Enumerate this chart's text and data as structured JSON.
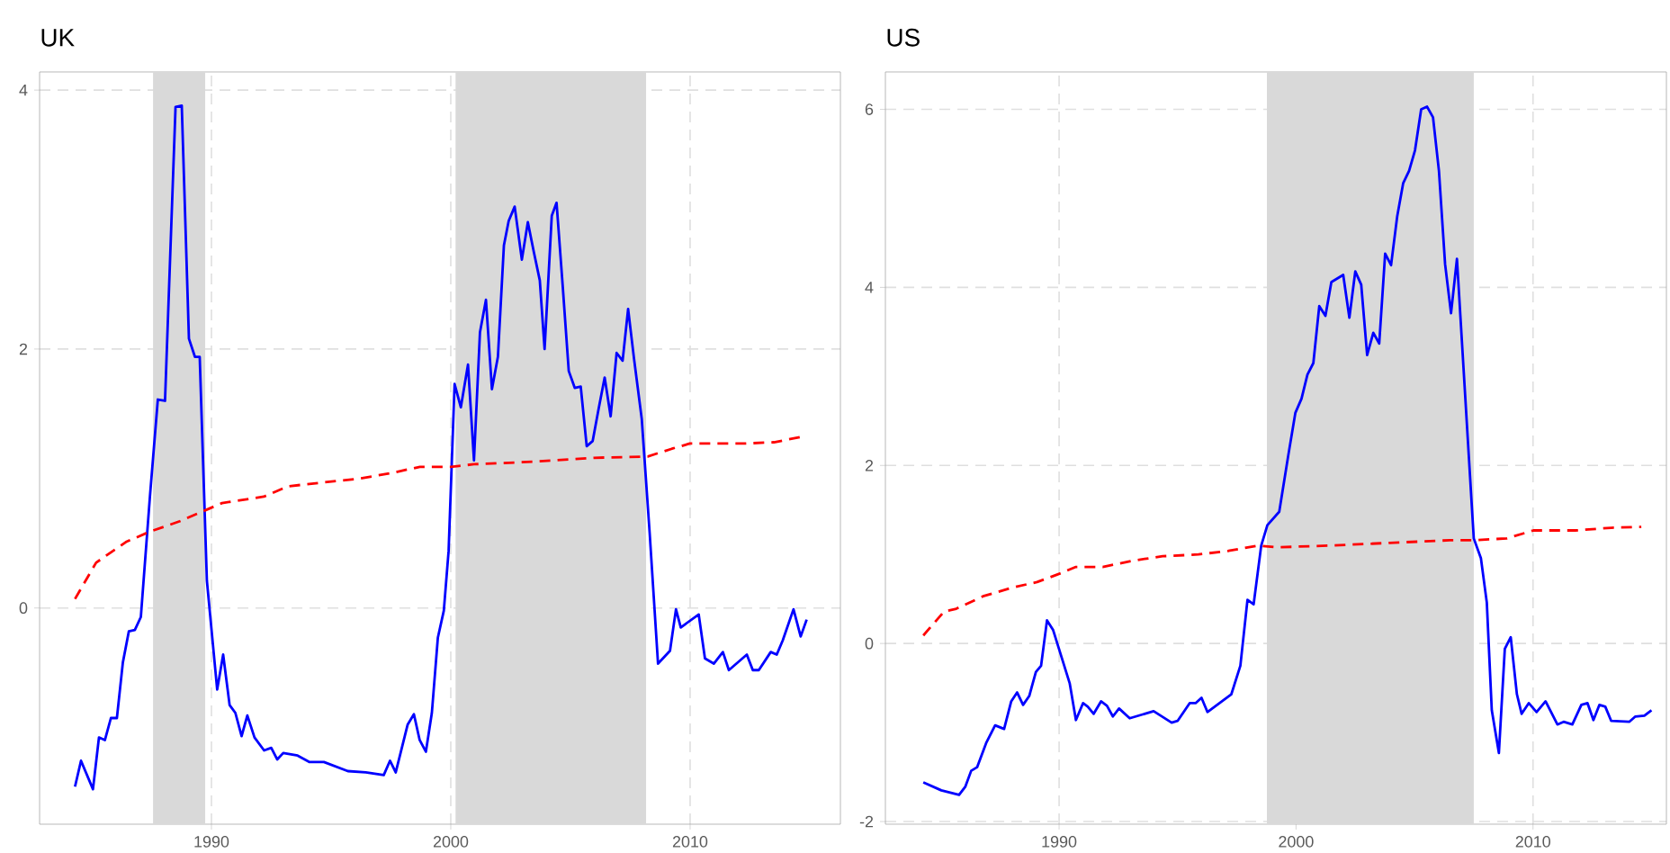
{
  "chart_data": [
    {
      "type": "line",
      "title": "UK",
      "xlim": [
        1982.82,
        2016.28
      ],
      "ylim": [
        -1.67,
        4.14
      ],
      "xticks": [
        1990,
        2000,
        2010
      ],
      "yticks": [
        0,
        2,
        4
      ],
      "grid": true,
      "bands": [
        {
          "axis": "x",
          "from": 1987.56,
          "to": 1989.74,
          "label": null,
          "color": "#d9d9d9"
        },
        {
          "axis": "x",
          "from": 2000.2,
          "to": 2008.16,
          "label": null,
          "color": "#d9d9d9"
        }
      ],
      "series": [
        {
          "color": "#0000ff",
          "line_style": "solid",
          "x": [
            1984.3,
            1984.55,
            1985.05,
            1985.3,
            1985.55,
            1985.8,
            1986.05,
            1986.3,
            1986.55,
            1986.8,
            1987.05,
            1987.43,
            1987.76,
            1988.06,
            1988.5,
            1988.76,
            1989.06,
            1989.31,
            1989.51,
            1989.81,
            1990.24,
            1990.49,
            1990.76,
            1991.0,
            1991.26,
            1991.5,
            1991.8,
            1992.2,
            1992.5,
            1992.75,
            1993.0,
            1993.6,
            1994.1,
            1994.7,
            1995.7,
            1996.45,
            1997.2,
            1997.46,
            1997.7,
            1998.2,
            1998.46,
            1998.7,
            1998.96,
            1999.21,
            1999.46,
            1999.71,
            1999.91,
            2000.16,
            2000.42,
            2000.72,
            2000.97,
            2001.22,
            2001.47,
            2001.72,
            2001.97,
            2002.22,
            2002.42,
            2002.67,
            2002.97,
            2003.22,
            2003.47,
            2003.72,
            2003.92,
            2004.22,
            2004.42,
            2004.68,
            2004.93,
            2005.18,
            2005.43,
            2005.68,
            2005.93,
            2006.18,
            2006.43,
            2006.68,
            2006.93,
            2007.18,
            2007.41,
            2007.66,
            2007.98,
            2008.31,
            2008.66,
            2009.16,
            2009.41,
            2009.61,
            2010.36,
            2010.62,
            2010.99,
            2011.37,
            2011.62,
            2012.37,
            2012.62,
            2012.87,
            2013.37,
            2013.62,
            2013.87,
            2014.32,
            2014.62,
            2014.87
          ],
          "values": [
            -1.38,
            -1.18,
            -1.4,
            -1.0,
            -1.02,
            -0.85,
            -0.85,
            -0.42,
            -0.18,
            -0.17,
            -0.07,
            0.86,
            1.61,
            1.6,
            3.87,
            3.88,
            2.08,
            1.94,
            1.94,
            0.21,
            -0.63,
            -0.36,
            -0.75,
            -0.81,
            -0.99,
            -0.83,
            -1.0,
            -1.1,
            -1.08,
            -1.17,
            -1.12,
            -1.14,
            -1.19,
            -1.19,
            -1.26,
            -1.27,
            -1.29,
            -1.18,
            -1.27,
            -0.9,
            -0.82,
            -1.02,
            -1.11,
            -0.81,
            -0.23,
            -0.02,
            0.44,
            1.73,
            1.55,
            1.88,
            1.14,
            2.13,
            2.38,
            1.69,
            1.94,
            2.8,
            2.99,
            3.1,
            2.69,
            2.98,
            2.75,
            2.53,
            2.0,
            3.03,
            3.13,
            2.48,
            1.83,
            1.7,
            1.71,
            1.25,
            1.29,
            1.54,
            1.78,
            1.48,
            1.97,
            1.91,
            2.31,
            1.92,
            1.46,
            0.58,
            -0.43,
            -0.33,
            -0.01,
            -0.15,
            -0.05,
            -0.39,
            -0.43,
            -0.34,
            -0.48,
            -0.36,
            -0.48,
            -0.48,
            -0.34,
            -0.36,
            -0.25,
            -0.01,
            -0.22,
            -0.09
          ]
        },
        {
          "color": "#ff0000",
          "line_style": "dashed",
          "x": [
            1984.3,
            1985.18,
            1986.43,
            1987.43,
            1988.68,
            1989.81,
            1990.44,
            1992.19,
            1993.2,
            1994.7,
            1996.2,
            1997.46,
            1998.71,
            2000.0,
            2000.97,
            2003.47,
            2005.98,
            2008.23,
            2009.24,
            2009.99,
            2012.24,
            2013.5,
            2014.62
          ],
          "values": [
            0.07,
            0.35,
            0.51,
            0.59,
            0.67,
            0.76,
            0.81,
            0.86,
            0.94,
            0.97,
            1.0,
            1.04,
            1.09,
            1.09,
            1.11,
            1.13,
            1.16,
            1.17,
            1.23,
            1.27,
            1.27,
            1.28,
            1.32
          ]
        }
      ]
    },
    {
      "type": "line",
      "title": "US",
      "xlim": [
        1982.67,
        2015.63
      ],
      "ylim": [
        -2.03,
        6.42
      ],
      "xticks": [
        1990,
        2000,
        2010
      ],
      "yticks": [
        -2,
        0,
        2,
        4,
        6
      ],
      "grid": true,
      "bands": [
        {
          "axis": "x",
          "from": 1998.77,
          "to": 2007.5,
          "label": null,
          "color": "#d9d9d9"
        }
      ],
      "series": [
        {
          "color": "#0000ff",
          "line_style": "solid",
          "x": [
            1984.27,
            1985.03,
            1985.78,
            1986.04,
            1986.29,
            1986.54,
            1986.92,
            1987.3,
            1987.68,
            1987.98,
            1988.23,
            1988.48,
            1988.74,
            1989.02,
            1989.24,
            1989.49,
            1989.75,
            1990.45,
            1990.71,
            1991.01,
            1991.21,
            1991.46,
            1991.77,
            1992.02,
            1992.27,
            1992.53,
            1992.98,
            1993.99,
            1994.75,
            1995.0,
            1995.51,
            1995.76,
            1996.01,
            1996.26,
            1997.27,
            1997.65,
            1997.95,
            1998.21,
            1998.53,
            1998.79,
            1999.29,
            1999.67,
            1999.97,
            2000.23,
            2000.48,
            2000.73,
            2000.98,
            2001.24,
            2001.49,
            2001.99,
            2002.25,
            2002.5,
            2002.75,
            2003.0,
            2003.26,
            2003.51,
            2003.76,
            2004.01,
            2004.27,
            2004.52,
            2004.77,
            2005.02,
            2005.28,
            2005.53,
            2005.78,
            2006.03,
            2006.29,
            2006.54,
            2006.79,
            2007.5,
            2007.8,
            2008.05,
            2008.26,
            2008.56,
            2008.81,
            2009.06,
            2009.32,
            2009.52,
            2009.82,
            2010.15,
            2010.53,
            2011.03,
            2011.29,
            2011.66,
            2012.04,
            2012.3,
            2012.55,
            2012.8,
            2013.05,
            2013.3,
            2014.06,
            2014.32,
            2014.7,
            2015.0
          ],
          "values": [
            -1.56,
            -1.65,
            -1.7,
            -1.61,
            -1.43,
            -1.39,
            -1.12,
            -0.92,
            -0.96,
            -0.65,
            -0.55,
            -0.69,
            -0.59,
            -0.32,
            -0.25,
            0.26,
            0.15,
            -0.45,
            -0.86,
            -0.67,
            -0.71,
            -0.79,
            -0.65,
            -0.7,
            -0.82,
            -0.73,
            -0.84,
            -0.76,
            -0.89,
            -0.87,
            -0.67,
            -0.67,
            -0.61,
            -0.77,
            -0.57,
            -0.25,
            0.49,
            0.44,
            1.1,
            1.33,
            1.48,
            2.11,
            2.59,
            2.75,
            3.02,
            3.15,
            3.79,
            3.68,
            4.06,
            4.14,
            3.66,
            4.18,
            4.03,
            3.24,
            3.49,
            3.37,
            4.38,
            4.25,
            4.8,
            5.17,
            5.31,
            5.54,
            6.0,
            6.03,
            5.91,
            5.31,
            4.26,
            3.71,
            4.32,
            1.18,
            0.96,
            0.46,
            -0.75,
            -1.23,
            -0.06,
            0.07,
            -0.57,
            -0.79,
            -0.67,
            -0.77,
            -0.65,
            -0.91,
            -0.88,
            -0.91,
            -0.69,
            -0.67,
            -0.86,
            -0.69,
            -0.71,
            -0.87,
            -0.88,
            -0.82,
            -0.81,
            -0.75
          ]
        },
        {
          "color": "#ff0000",
          "line_style": "dashed",
          "x": [
            1984.27,
            1985.15,
            1985.66,
            1986.79,
            1988.06,
            1989.07,
            1990.08,
            1990.71,
            1991.84,
            1993.1,
            1994.37,
            1995.88,
            1997.15,
            1998.41,
            1999.17,
            2001.44,
            2003.96,
            2006.49,
            2007.5,
            2008.89,
            2010.02,
            2011.79,
            2013.3,
            2014.57
          ],
          "values": [
            0.09,
            0.36,
            0.39,
            0.53,
            0.63,
            0.69,
            0.79,
            0.86,
            0.86,
            0.93,
            0.98,
            1.0,
            1.04,
            1.1,
            1.08,
            1.1,
            1.13,
            1.16,
            1.16,
            1.18,
            1.27,
            1.27,
            1.3,
            1.31
          ]
        }
      ]
    }
  ]
}
